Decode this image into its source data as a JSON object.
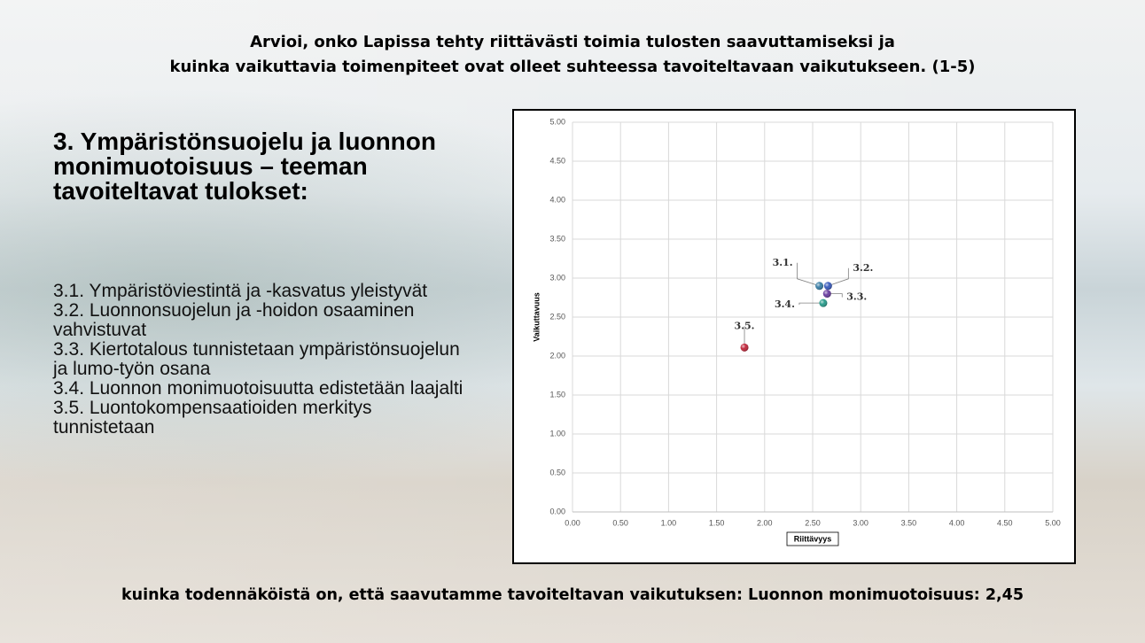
{
  "slide": {
    "title": [
      "Arvioi, onko Lapissa tehty riittävästi toimia tulosten saavuttamiseksi ja",
      "kuinka vaikuttavia toimenpiteet ovat olleet suhteessa tavoiteltavaan vaikutukseen. (1-5)"
    ],
    "heading": "3. Ympäristönsuojelu ja luonnon monimuotoisuus – teeman tavoiteltavat tulokset:",
    "items": [
      "3.1. Ympäristöviestintä ja -kasvatus yleistyvät",
      "3.2. Luonnonsuojelun ja -hoidon osaaminen vahvistuvat",
      "3.3. Kiertotalous tunnistetaan ympäristönsuojelun ja lumo-työn osana",
      "3.4. Luonnon monimuotoisuutta edistetään laajalti",
      "3.5. Luontokompensaatioiden merkitys tunnistetaan"
    ],
    "footer": "kuinka todennäköistä on, että saavutamme tavoiteltavan vaikutuksen: Luonnon monimuotoisuus: 2,45"
  },
  "chart_data": {
    "type": "scatter",
    "x_label": "Riittävyys",
    "y_label": "Vaikuttavuus",
    "xlim": [
      0,
      5
    ],
    "ylim": [
      0,
      5
    ],
    "xticks": [
      {
        "value": 0,
        "label": "0.00"
      },
      {
        "value": 0.5,
        "label": "0.50"
      },
      {
        "value": 1,
        "label": "1.00"
      },
      {
        "value": 1.5,
        "label": "1.50"
      },
      {
        "value": 2,
        "label": "2.00"
      },
      {
        "value": 2.5,
        "label": "2.50"
      },
      {
        "value": 3,
        "label": "3.00"
      },
      {
        "value": 3.5,
        "label": "3.50"
      },
      {
        "value": 4,
        "label": "4.00"
      },
      {
        "value": 4.5,
        "label": "4.50"
      },
      {
        "value": 5,
        "label": "5.00"
      }
    ],
    "yticks": [
      {
        "value": 0,
        "label": "0.00"
      },
      {
        "value": 0.5,
        "label": "0.50"
      },
      {
        "value": 1,
        "label": "1.00"
      },
      {
        "value": 1.5,
        "label": "1.50"
      },
      {
        "value": 2,
        "label": "2.00"
      },
      {
        "value": 2.5,
        "label": "2.50"
      },
      {
        "value": 3,
        "label": "3.00"
      },
      {
        "value": 3.5,
        "label": "3.50"
      },
      {
        "value": 4,
        "label": "4.00"
      },
      {
        "value": 4.5,
        "label": "4.50"
      },
      {
        "value": 5,
        "label": "5.00"
      }
    ],
    "grid": true,
    "series": [
      {
        "name": "3.1.",
        "color": "#3b7fa6",
        "x": [
          2.57
        ],
        "y": [
          2.9
        ]
      },
      {
        "name": "3.2.",
        "color": "#3a5cbc",
        "x": [
          2.66
        ],
        "y": [
          2.9
        ]
      },
      {
        "name": "3.3.",
        "color": "#6a3fa0",
        "x": [
          2.65
        ],
        "y": [
          2.8
        ]
      },
      {
        "name": "3.4.",
        "color": "#2a9c8c",
        "x": [
          2.61
        ],
        "y": [
          2.68
        ]
      },
      {
        "name": "3.5.",
        "color": "#c0283c",
        "x": [
          1.79
        ],
        "y": [
          2.11
        ]
      }
    ]
  }
}
